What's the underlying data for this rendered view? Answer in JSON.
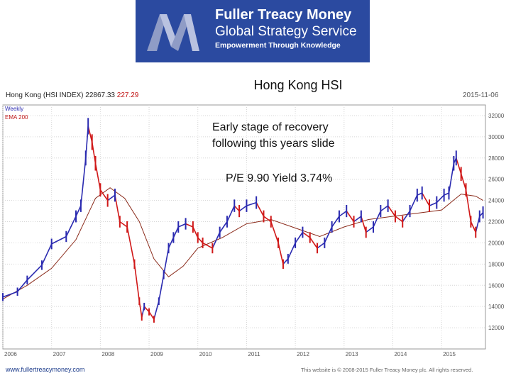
{
  "banner": {
    "brand_name": "Fuller Treacy Money",
    "brand_sub": "Global Strategy Service",
    "tagline": "Empowerment Through Knowledge",
    "bg_color": "#2b4aa0",
    "logo_icon": "ftm-m-logo"
  },
  "slide": {
    "title": "Hong Kong HSI",
    "annotation_1": "Early stage of recovery",
    "annotation_2": "following this years slide",
    "annotation_3": "P/E 9.90 Yield 3.74%"
  },
  "chart_header": {
    "instrument": "Hong Kong (HSI INDEX) 22867.33",
    "change": "227.29",
    "date": "2015-11-06"
  },
  "footer": {
    "left": "www.fullertreacymoney.com",
    "right": "This website is © 2008-2015 Fuller Treacy Money plc. All rights reserved."
  },
  "chart_data": {
    "type": "line",
    "title": "Hong Kong (HSI INDEX)",
    "xlabel": "",
    "ylabel": "",
    "x_range": [
      2006.0,
      2015.9
    ],
    "ylim": [
      10000,
      33000
    ],
    "x_ticks": [
      "2006",
      "2007",
      "2008",
      "2009",
      "2010",
      "2011",
      "2012",
      "2013",
      "2014",
      "2015"
    ],
    "y_ticks": [
      12000,
      14000,
      16000,
      18000,
      20000,
      22000,
      24000,
      26000,
      28000,
      30000,
      32000
    ],
    "legend": [
      "Weekly",
      "EMA 200"
    ],
    "legend_position": "top-left",
    "grid": true,
    "series": [
      {
        "name": "Weekly",
        "color": "#2a2ab0",
        "down_color": "#d01818",
        "x": [
          2006.0,
          2006.3,
          2006.5,
          2006.8,
          2007.0,
          2007.3,
          2007.5,
          2007.6,
          2007.7,
          2007.75,
          2007.83,
          2007.9,
          2008.0,
          2008.15,
          2008.3,
          2008.4,
          2008.55,
          2008.7,
          2008.8,
          2008.85,
          2008.9,
          2009.0,
          2009.1,
          2009.2,
          2009.3,
          2009.4,
          2009.5,
          2009.6,
          2009.75,
          2009.9,
          2010.0,
          2010.1,
          2010.3,
          2010.45,
          2010.6,
          2010.75,
          2010.85,
          2011.0,
          2011.2,
          2011.35,
          2011.5,
          2011.65,
          2011.75,
          2011.85,
          2012.0,
          2012.15,
          2012.3,
          2012.45,
          2012.6,
          2012.75,
          2012.9,
          2013.05,
          2013.2,
          2013.35,
          2013.45,
          2013.6,
          2013.75,
          2013.9,
          2014.05,
          2014.2,
          2014.35,
          2014.5,
          2014.6,
          2014.75,
          2014.9,
          2015.05,
          2015.15,
          2015.25,
          2015.3,
          2015.4,
          2015.5,
          2015.6,
          2015.7,
          2015.78,
          2015.85
        ],
        "y": [
          14900,
          15400,
          16500,
          17900,
          19900,
          20600,
          22500,
          23500,
          28000,
          31000,
          29500,
          27500,
          25000,
          24000,
          24500,
          22000,
          21500,
          18000,
          14500,
          13000,
          14000,
          13500,
          12800,
          14500,
          17000,
          19500,
          20500,
          21500,
          21800,
          21500,
          20500,
          20000,
          19500,
          21000,
          22000,
          23500,
          23000,
          23500,
          23800,
          22500,
          22000,
          20000,
          18000,
          18500,
          20000,
          21000,
          20500,
          19500,
          20000,
          21500,
          22500,
          23000,
          22000,
          22500,
          21000,
          21500,
          23000,
          23500,
          22500,
          22000,
          23000,
          24500,
          24700,
          23500,
          23800,
          24500,
          24700,
          27500,
          28000,
          26500,
          25000,
          22000,
          21000,
          22500,
          22867
        ]
      },
      {
        "name": "EMA 200",
        "color": "#8a2a1a",
        "x": [
          2006.0,
          2006.5,
          2007.0,
          2007.5,
          2007.9,
          2008.2,
          2008.5,
          2008.8,
          2009.1,
          2009.4,
          2009.7,
          2010.0,
          2010.5,
          2011.0,
          2011.5,
          2012.0,
          2012.5,
          2013.0,
          2013.5,
          2014.0,
          2014.5,
          2015.0,
          2015.4,
          2015.7,
          2015.85
        ],
        "y": [
          14700,
          16000,
          17600,
          20300,
          24200,
          25200,
          24200,
          22000,
          18500,
          16800,
          17800,
          19500,
          20500,
          21800,
          22200,
          21400,
          20600,
          21500,
          22200,
          22500,
          22800,
          23100,
          24600,
          24400,
          24000
        ]
      }
    ]
  }
}
